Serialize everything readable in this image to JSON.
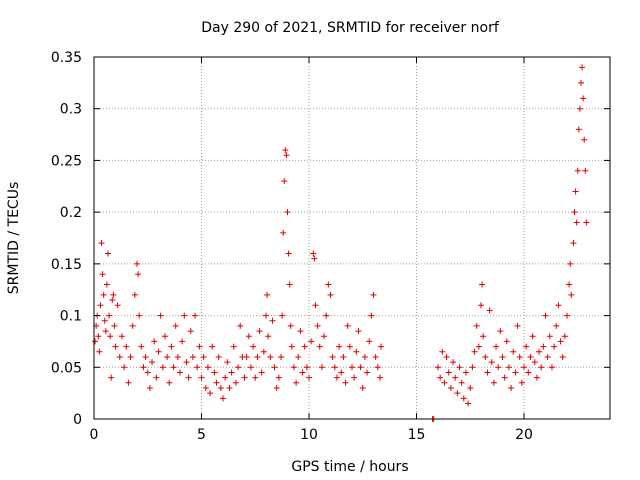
{
  "chart_data": {
    "type": "scatter",
    "title": "Day 290 of 2021, SRMTID for receiver norf",
    "xlabel": "GPS time / hours",
    "ylabel": "SRMTID / TECUs",
    "xlim": [
      0,
      24
    ],
    "ylim": [
      0,
      0.35
    ],
    "xticks": [
      0,
      5,
      10,
      15,
      20
    ],
    "xtick_labels": [
      "0",
      "5",
      "10",
      "15",
      "20"
    ],
    "yticks": [
      0,
      0.05,
      0.1,
      0.15,
      0.2,
      0.25,
      0.3,
      0.35
    ],
    "ytick_labels": [
      "0",
      "0.05",
      "0.1",
      "0.15",
      "0.2",
      "0.25",
      "0.3",
      "0.35"
    ],
    "grid": true,
    "marker": "plus",
    "color": "#e00000",
    "series": [
      {
        "name": "SRMTID",
        "points": [
          [
            0.05,
            0.075
          ],
          [
            0.1,
            0.09
          ],
          [
            0.15,
            0.1
          ],
          [
            0.2,
            0.08
          ],
          [
            0.25,
            0.065
          ],
          [
            0.3,
            0.11
          ],
          [
            0.35,
            0.17
          ],
          [
            0.4,
            0.14
          ],
          [
            0.45,
            0.12
          ],
          [
            0.5,
            0.095
          ],
          [
            0.55,
            0.085
          ],
          [
            0.6,
            0.13
          ],
          [
            0.65,
            0.16
          ],
          [
            0.7,
            0.1
          ],
          [
            0.75,
            0.08
          ],
          [
            0.8,
            0.04
          ],
          [
            0.85,
            0.115
          ],
          [
            0.9,
            0.12
          ],
          [
            0.95,
            0.09
          ],
          [
            1.0,
            0.07
          ],
          [
            1.1,
            0.11
          ],
          [
            1.2,
            0.06
          ],
          [
            1.3,
            0.08
          ],
          [
            1.4,
            0.05
          ],
          [
            1.5,
            0.07
          ],
          [
            1.6,
            0.035
          ],
          [
            1.7,
            0.06
          ],
          [
            1.8,
            0.09
          ],
          [
            1.9,
            0.12
          ],
          [
            2.0,
            0.15
          ],
          [
            2.05,
            0.14
          ],
          [
            2.1,
            0.1
          ],
          [
            2.2,
            0.07
          ],
          [
            2.3,
            0.05
          ],
          [
            2.4,
            0.06
          ],
          [
            2.5,
            0.045
          ],
          [
            2.6,
            0.03
          ],
          [
            2.7,
            0.055
          ],
          [
            2.8,
            0.075
          ],
          [
            2.9,
            0.04
          ],
          [
            3.0,
            0.065
          ],
          [
            3.1,
            0.1
          ],
          [
            3.2,
            0.05
          ],
          [
            3.3,
            0.08
          ],
          [
            3.4,
            0.06
          ],
          [
            3.5,
            0.035
          ],
          [
            3.6,
            0.07
          ],
          [
            3.7,
            0.05
          ],
          [
            3.8,
            0.09
          ],
          [
            3.9,
            0.06
          ],
          [
            4.0,
            0.045
          ],
          [
            4.1,
            0.075
          ],
          [
            4.2,
            0.1
          ],
          [
            4.3,
            0.055
          ],
          [
            4.4,
            0.04
          ],
          [
            4.5,
            0.085
          ],
          [
            4.6,
            0.06
          ],
          [
            4.7,
            0.1
          ],
          [
            4.8,
            0.05
          ],
          [
            4.9,
            0.07
          ],
          [
            5.0,
            0.04
          ],
          [
            5.1,
            0.06
          ],
          [
            5.2,
            0.03
          ],
          [
            5.3,
            0.05
          ],
          [
            5.4,
            0.025
          ],
          [
            5.5,
            0.07
          ],
          [
            5.6,
            0.045
          ],
          [
            5.7,
            0.035
          ],
          [
            5.8,
            0.06
          ],
          [
            5.9,
            0.03
          ],
          [
            6.0,
            0.02
          ],
          [
            6.1,
            0.04
          ],
          [
            6.2,
            0.055
          ],
          [
            6.3,
            0.03
          ],
          [
            6.4,
            0.045
          ],
          [
            6.5,
            0.07
          ],
          [
            6.6,
            0.035
          ],
          [
            6.7,
            0.05
          ],
          [
            6.8,
            0.09
          ],
          [
            6.9,
            0.06
          ],
          [
            7.0,
            0.04
          ],
          [
            7.1,
            0.06
          ],
          [
            7.2,
            0.08
          ],
          [
            7.3,
            0.05
          ],
          [
            7.4,
            0.07
          ],
          [
            7.5,
            0.04
          ],
          [
            7.6,
            0.06
          ],
          [
            7.7,
            0.085
          ],
          [
            7.8,
            0.045
          ],
          [
            7.9,
            0.065
          ],
          [
            8.0,
            0.1
          ],
          [
            8.05,
            0.12
          ],
          [
            8.1,
            0.08
          ],
          [
            8.2,
            0.06
          ],
          [
            8.3,
            0.095
          ],
          [
            8.4,
            0.05
          ],
          [
            8.5,
            0.03
          ],
          [
            8.6,
            0.04
          ],
          [
            8.7,
            0.06
          ],
          [
            8.75,
            0.1
          ],
          [
            8.8,
            0.18
          ],
          [
            8.85,
            0.23
          ],
          [
            8.9,
            0.26
          ],
          [
            8.95,
            0.255
          ],
          [
            9.0,
            0.2
          ],
          [
            9.05,
            0.16
          ],
          [
            9.1,
            0.13
          ],
          [
            9.15,
            0.09
          ],
          [
            9.2,
            0.07
          ],
          [
            9.3,
            0.05
          ],
          [
            9.4,
            0.035
          ],
          [
            9.5,
            0.06
          ],
          [
            9.6,
            0.085
          ],
          [
            9.7,
            0.045
          ],
          [
            9.8,
            0.07
          ],
          [
            9.9,
            0.05
          ],
          [
            10.0,
            0.04
          ],
          [
            10.1,
            0.075
          ],
          [
            10.2,
            0.16
          ],
          [
            10.25,
            0.155
          ],
          [
            10.3,
            0.11
          ],
          [
            10.4,
            0.09
          ],
          [
            10.5,
            0.07
          ],
          [
            10.6,
            0.05
          ],
          [
            10.7,
            0.08
          ],
          [
            10.8,
            0.1
          ],
          [
            10.9,
            0.13
          ],
          [
            11.0,
            0.12
          ],
          [
            11.1,
            0.06
          ],
          [
            11.2,
            0.05
          ],
          [
            11.3,
            0.04
          ],
          [
            11.4,
            0.07
          ],
          [
            11.5,
            0.045
          ],
          [
            11.6,
            0.06
          ],
          [
            11.7,
            0.035
          ],
          [
            11.8,
            0.09
          ],
          [
            11.9,
            0.07
          ],
          [
            12.0,
            0.05
          ],
          [
            12.1,
            0.04
          ],
          [
            12.2,
            0.065
          ],
          [
            12.3,
            0.085
          ],
          [
            12.4,
            0.05
          ],
          [
            12.5,
            0.03
          ],
          [
            12.6,
            0.06
          ],
          [
            12.7,
            0.045
          ],
          [
            12.8,
            0.075
          ],
          [
            12.9,
            0.1
          ],
          [
            13.0,
            0.12
          ],
          [
            13.1,
            0.06
          ],
          [
            13.2,
            0.05
          ],
          [
            13.3,
            0.04
          ],
          [
            13.35,
            0.07
          ],
          [
            15.75,
            0.0
          ],
          [
            15.8,
            0.0
          ],
          [
            16.0,
            0.05
          ],
          [
            16.1,
            0.04
          ],
          [
            16.2,
            0.065
          ],
          [
            16.3,
            0.035
          ],
          [
            16.4,
            0.06
          ],
          [
            16.5,
            0.045
          ],
          [
            16.6,
            0.03
          ],
          [
            16.7,
            0.055
          ],
          [
            16.8,
            0.04
          ],
          [
            16.9,
            0.025
          ],
          [
            17.0,
            0.05
          ],
          [
            17.1,
            0.035
          ],
          [
            17.2,
            0.02
          ],
          [
            17.3,
            0.045
          ],
          [
            17.4,
            0.015
          ],
          [
            17.5,
            0.03
          ],
          [
            17.6,
            0.05
          ],
          [
            17.7,
            0.065
          ],
          [
            17.8,
            0.09
          ],
          [
            17.9,
            0.07
          ],
          [
            18.0,
            0.11
          ],
          [
            18.05,
            0.13
          ],
          [
            18.1,
            0.08
          ],
          [
            18.2,
            0.06
          ],
          [
            18.3,
            0.045
          ],
          [
            18.4,
            0.105
          ],
          [
            18.5,
            0.055
          ],
          [
            18.6,
            0.035
          ],
          [
            18.7,
            0.07
          ],
          [
            18.8,
            0.05
          ],
          [
            18.9,
            0.085
          ],
          [
            19.0,
            0.06
          ],
          [
            19.1,
            0.04
          ],
          [
            19.2,
            0.075
          ],
          [
            19.3,
            0.05
          ],
          [
            19.4,
            0.03
          ],
          [
            19.5,
            0.065
          ],
          [
            19.6,
            0.045
          ],
          [
            19.7,
            0.09
          ],
          [
            19.8,
            0.06
          ],
          [
            19.9,
            0.035
          ],
          [
            20.0,
            0.05
          ],
          [
            20.1,
            0.07
          ],
          [
            20.2,
            0.045
          ],
          [
            20.3,
            0.06
          ],
          [
            20.4,
            0.08
          ],
          [
            20.5,
            0.055
          ],
          [
            20.6,
            0.04
          ],
          [
            20.7,
            0.065
          ],
          [
            20.8,
            0.05
          ],
          [
            20.9,
            0.07
          ],
          [
            21.0,
            0.1
          ],
          [
            21.1,
            0.06
          ],
          [
            21.2,
            0.08
          ],
          [
            21.3,
            0.05
          ],
          [
            21.4,
            0.07
          ],
          [
            21.5,
            0.09
          ],
          [
            21.6,
            0.11
          ],
          [
            21.7,
            0.075
          ],
          [
            21.8,
            0.06
          ],
          [
            21.9,
            0.08
          ],
          [
            22.0,
            0.1
          ],
          [
            22.1,
            0.13
          ],
          [
            22.15,
            0.15
          ],
          [
            22.2,
            0.12
          ],
          [
            22.3,
            0.17
          ],
          [
            22.35,
            0.2
          ],
          [
            22.4,
            0.22
          ],
          [
            22.45,
            0.19
          ],
          [
            22.5,
            0.24
          ],
          [
            22.55,
            0.28
          ],
          [
            22.6,
            0.3
          ],
          [
            22.65,
            0.325
          ],
          [
            22.7,
            0.34
          ],
          [
            22.75,
            0.31
          ],
          [
            22.8,
            0.27
          ],
          [
            22.85,
            0.24
          ],
          [
            22.9,
            0.19
          ]
        ]
      }
    ]
  }
}
